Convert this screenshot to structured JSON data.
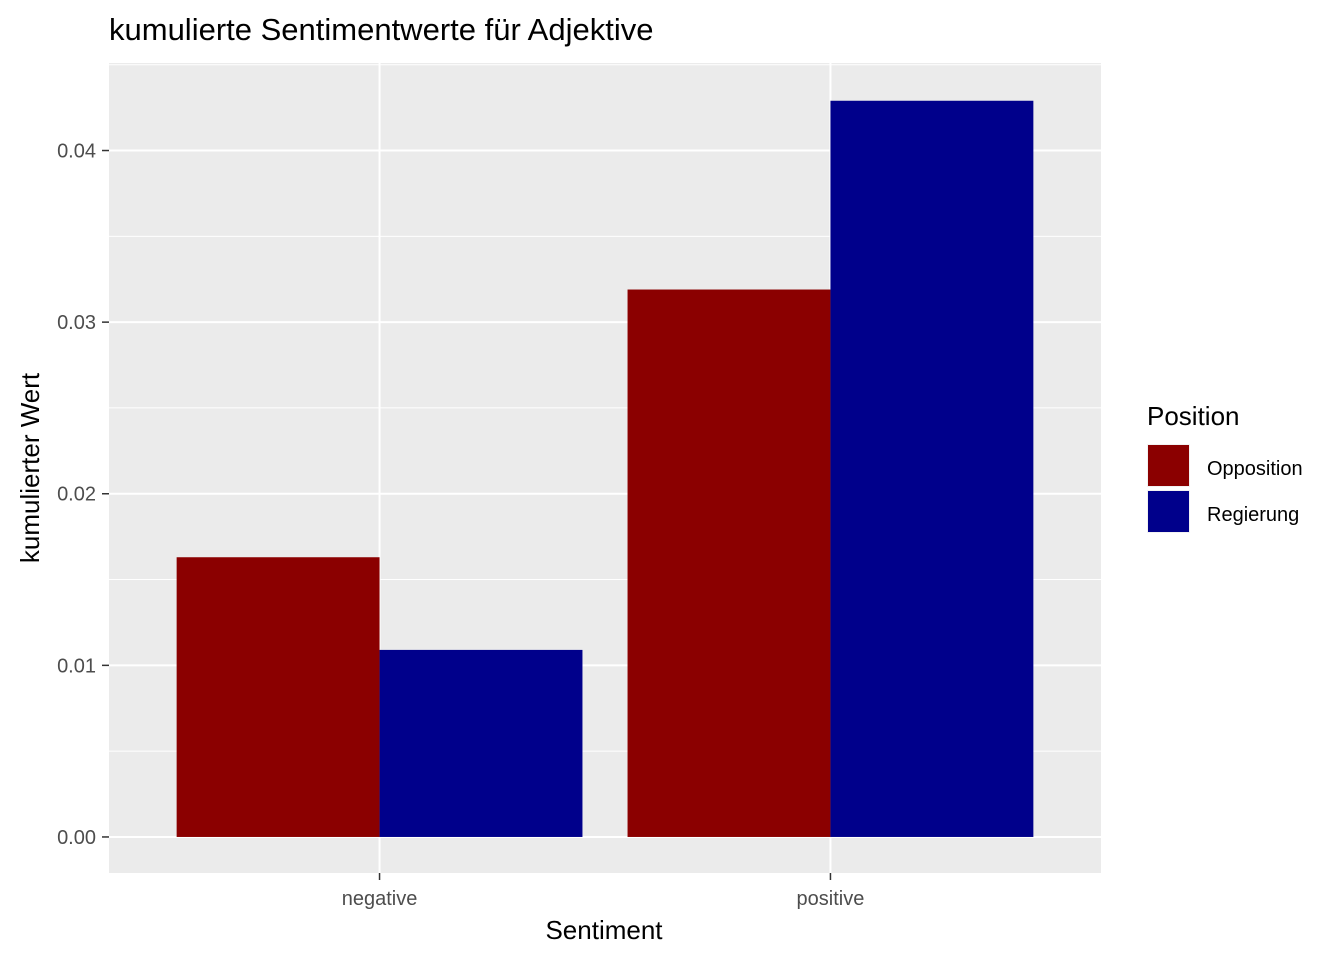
{
  "chart_data": {
    "type": "bar",
    "title": "kumulierte Sentimentwerte für Adjektive",
    "xlabel": "Sentiment",
    "ylabel": "kumulierter Wert",
    "categories": [
      "negative",
      "positive"
    ],
    "series": [
      {
        "name": "Opposition",
        "color": "#8B0000",
        "values": [
          0.0163,
          0.0319
        ]
      },
      {
        "name": "Regierung",
        "color": "#00008B",
        "values": [
          0.0109,
          0.0429
        ]
      }
    ],
    "ylim": [
      -0.0021,
      0.0451
    ],
    "yticks": [
      0.0,
      0.01,
      0.02,
      0.03,
      0.04
    ],
    "ytick_labels": [
      "0.00",
      "0.01",
      "0.02",
      "0.03",
      "0.04"
    ],
    "grid": true,
    "panel_background": "#EBEBEB",
    "legend": {
      "title": "Position",
      "placement": "right"
    }
  }
}
